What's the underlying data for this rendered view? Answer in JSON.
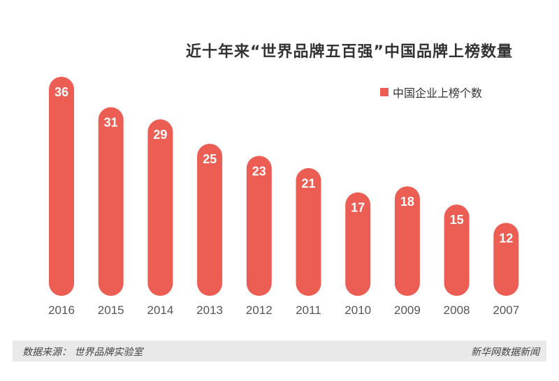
{
  "chart_data": {
    "type": "bar",
    "title": "近十年来“世界品牌五百强”中国品牌上榜数量",
    "categories": [
      "2016",
      "2015",
      "2014",
      "2013",
      "2012",
      "2011",
      "2010",
      "2009",
      "2008",
      "2007"
    ],
    "series": [
      {
        "name": "中国企业上榜个数",
        "values": [
          36,
          31,
          29,
          25,
          23,
          21,
          17,
          18,
          15,
          12
        ]
      }
    ],
    "xlabel": "",
    "ylabel": "",
    "ylim": [
      0,
      36
    ],
    "legend_position": "top-right",
    "grid": false
  },
  "colors": {
    "bar": "#ec5e53",
    "label": "#ffffff",
    "axis_text": "#555555",
    "footer_bg": "#e9e9e9"
  },
  "footer": {
    "source": "数据来源： 世界品牌实验室",
    "credit": "新华网数据新闻"
  }
}
